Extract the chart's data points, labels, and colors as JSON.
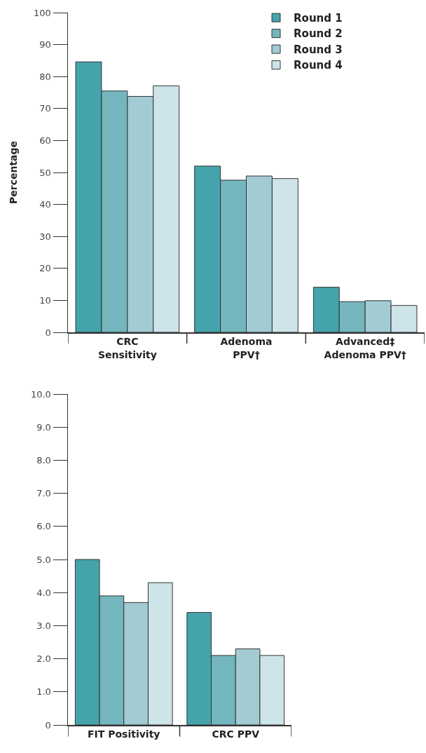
{
  "chart_data": [
    {
      "type": "bar",
      "ylabel": "Percentage",
      "categories": [
        "CRC\nSensitivity",
        "Adenoma\nPPV†",
        "Advanced‡\nAdenoma PPV†"
      ],
      "series": [
        {
          "name": "Round 1",
          "color": "#45a3ab",
          "values": [
            84.6,
            52.0,
            14.1
          ]
        },
        {
          "name": "Round 2",
          "color": "#74b6bd",
          "values": [
            75.5,
            47.6,
            9.6
          ]
        },
        {
          "name": "Round 3",
          "color": "#a2cbd3",
          "values": [
            73.8,
            48.9,
            9.9
          ]
        },
        {
          "name": "Round 4",
          "color": "#cde4e9",
          "values": [
            77.1,
            48.1,
            8.4
          ]
        }
      ],
      "ylim": [
        0,
        100
      ],
      "yticks": [
        0,
        10,
        20,
        30,
        40,
        50,
        60,
        70,
        80,
        90,
        100
      ],
      "grid": false,
      "legend": "top right"
    },
    {
      "type": "bar",
      "categories": [
        "FIT Positivity",
        "CRC PPV"
      ],
      "series": [
        {
          "color": "#45a3ab",
          "values": [
            5.0,
            3.4
          ]
        },
        {
          "color": "#74b6bd",
          "values": [
            3.9,
            2.1
          ]
        },
        {
          "color": "#a2cbd3",
          "values": [
            3.7,
            2.3
          ]
        },
        {
          "color": "#cde4e9",
          "values": [
            4.3,
            2.1
          ]
        }
      ],
      "ylim": [
        0,
        10
      ],
      "yticks": [
        0,
        {
          "value": 1,
          "label": "1.0"
        },
        {
          "value": 2,
          "label": "2.0"
        },
        {
          "value": 3,
          "label": "3.0"
        },
        {
          "value": 4,
          "label": "4.0"
        },
        {
          "value": 5,
          "label": "5.0"
        },
        {
          "value": 6,
          "label": "6.0"
        },
        {
          "value": 7,
          "label": "7.0"
        },
        {
          "value": 8,
          "label": "8.0"
        },
        {
          "value": 9,
          "label": "9.0"
        },
        {
          "value": 10,
          "label": "10.0"
        }
      ],
      "grid": false,
      "legend": false
    }
  ]
}
